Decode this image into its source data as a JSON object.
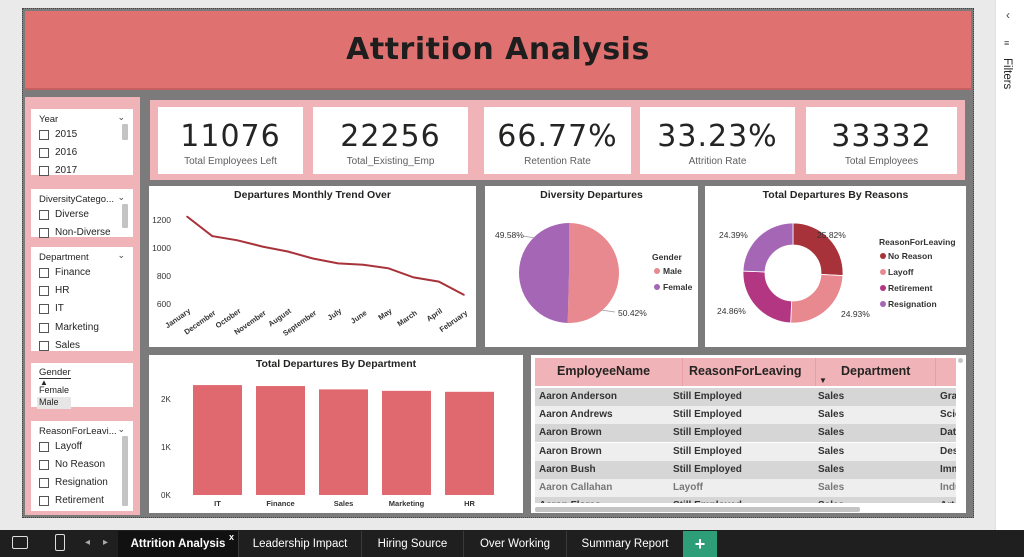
{
  "title": "Attrition Analysis",
  "slicers": {
    "year": {
      "title": "Year",
      "items": [
        "2015",
        "2016",
        "2017"
      ]
    },
    "diversity": {
      "title": "DiversityCatego...",
      "items": [
        "Diverse",
        "Non-Diverse"
      ]
    },
    "department": {
      "title": "Department",
      "items": [
        "Finance",
        "HR",
        "IT",
        "Marketing",
        "Sales"
      ]
    },
    "gender": {
      "title": "Gender",
      "items": [
        "Female",
        "Male"
      ]
    },
    "reason": {
      "title": "ReasonForLeavi...",
      "items": [
        "Layoff",
        "No Reason",
        "Resignation",
        "Retirement"
      ]
    }
  },
  "kpis": [
    {
      "value": "11076",
      "label": "Total Employees Left"
    },
    {
      "value": "22256",
      "label": "Total_Existing_Emp"
    },
    {
      "value": "66.77%",
      "label": "Retention Rate"
    },
    {
      "value": "33.23%",
      "label": "Attrition Rate"
    },
    {
      "value": "33332",
      "label": "Total Employees"
    }
  ],
  "chart_data": [
    {
      "type": "line",
      "title": "Departures Monthly Trend Over",
      "categories": [
        "January",
        "December",
        "October",
        "November",
        "August",
        "September",
        "July",
        "June",
        "May",
        "March",
        "April",
        "February"
      ],
      "values": [
        1225,
        1085,
        1055,
        1010,
        975,
        925,
        890,
        880,
        855,
        790,
        760,
        665
      ],
      "yticks": [
        "1200",
        "1000",
        "800",
        "600"
      ],
      "ylim": [
        600,
        1200
      ],
      "color": "#a8323a"
    },
    {
      "type": "pie",
      "title": "Diversity Departures",
      "legend_title": "Gender",
      "slices": [
        {
          "name": "Male",
          "value": 50.42,
          "label": "50.42%",
          "color": "#e8888f"
        },
        {
          "name": "Female",
          "value": 49.58,
          "label": "49.58%",
          "color": "#a566b5"
        }
      ]
    },
    {
      "type": "pie",
      "title": "Total Departures By Reasons",
      "legend_title": "ReasonForLeaving",
      "slices": [
        {
          "name": "No Reason",
          "value": 25.82,
          "label": "25.82%",
          "color": "#a8323a"
        },
        {
          "name": "Layoff",
          "value": 24.93,
          "label": "24.93%",
          "color": "#e8888f"
        },
        {
          "name": "Retirement",
          "value": 24.86,
          "label": "24.86%",
          "color": "#b33682"
        },
        {
          "name": "Resignation",
          "value": 24.39,
          "label": "24.39%",
          "color": "#a566b5"
        }
      ]
    },
    {
      "type": "bar",
      "title": "Total Departures By Department",
      "categories": [
        "IT",
        "Finance",
        "Sales",
        "Marketing",
        "HR"
      ],
      "values": [
        2290,
        2270,
        2200,
        2170,
        2150
      ],
      "yticks": [
        "2K",
        "1K",
        "0K"
      ],
      "ylim": [
        0,
        2500
      ],
      "color": "#e0686f"
    }
  ],
  "table": {
    "headers": [
      "EmployeeName",
      "ReasonForLeaving",
      "Department"
    ],
    "rows": [
      [
        "Aaron Anderson",
        "Still Employed",
        "Sales",
        "Gra"
      ],
      [
        "Aaron Andrews",
        "Still Employed",
        "Sales",
        "Scie"
      ],
      [
        "Aaron Brown",
        "Still Employed",
        "Sales",
        "Dat"
      ],
      [
        "Aaron Brown",
        "Still Employed",
        "Sales",
        "Des"
      ],
      [
        "Aaron Bush",
        "Still Employed",
        "Sales",
        "Imm"
      ],
      [
        "Aaron Callahan",
        "Layoff",
        "Sales",
        "Indu"
      ],
      [
        "Aaron Flores",
        "Still Employed",
        "Sales",
        "Arts"
      ]
    ]
  },
  "filters_label": "Filters",
  "tabs": [
    "Attrition Analysis",
    "Leadership Impact",
    "Hiring Source",
    "Over Working",
    "Summary Report"
  ],
  "tab_close": "x",
  "add_tab": "+",
  "legend_gender": [
    "Male",
    "Female"
  ]
}
